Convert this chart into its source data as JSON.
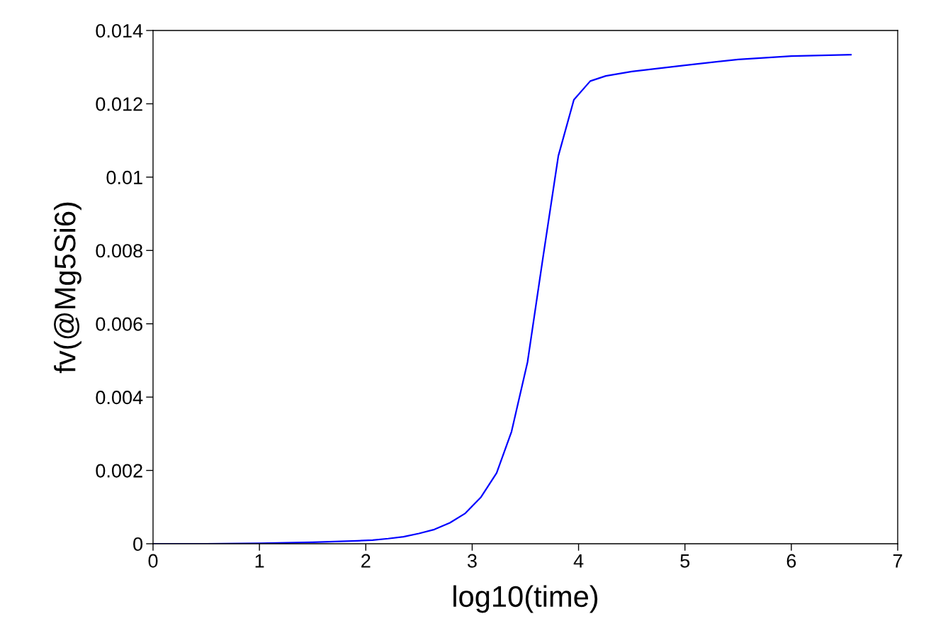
{
  "chart_data": {
    "type": "line",
    "xlabel": "log10(time)",
    "ylabel": "fv(@Mg5Si6)",
    "x": [
      0,
      0.5,
      1,
      1.5,
      1.92,
      2.065,
      2.21,
      2.355,
      2.5,
      2.645,
      2.79,
      2.935,
      3.08,
      3.23,
      3.37,
      3.52,
      3.66,
      3.81,
      3.956,
      4.11,
      4.256,
      4.5,
      5,
      5.5,
      6,
      6.56
    ],
    "series": [
      {
        "color": "#0000ff",
        "values": [
          0,
          0,
          1e-05,
          4e-05,
          8e-05,
          0.0001,
          0.00014,
          0.00019,
          0.00028,
          0.00039,
          0.00057,
          0.00083,
          0.00126,
          0.00193,
          0.00306,
          0.00495,
          0.0077,
          0.01058,
          0.01211,
          0.01262,
          0.01276,
          0.01288,
          0.01305,
          0.01321,
          0.0133,
          0.01334
        ]
      }
    ],
    "xlim": [
      0,
      7
    ],
    "ylim": [
      0,
      0.014
    ],
    "xticks": [
      0,
      1,
      2,
      3,
      4,
      5,
      6,
      7
    ],
    "yticks": [
      0,
      0.002,
      0.004,
      0.006,
      0.008,
      0.01,
      0.012,
      0.014
    ],
    "grid": false,
    "marker": "none",
    "line_style": "solid"
  }
}
